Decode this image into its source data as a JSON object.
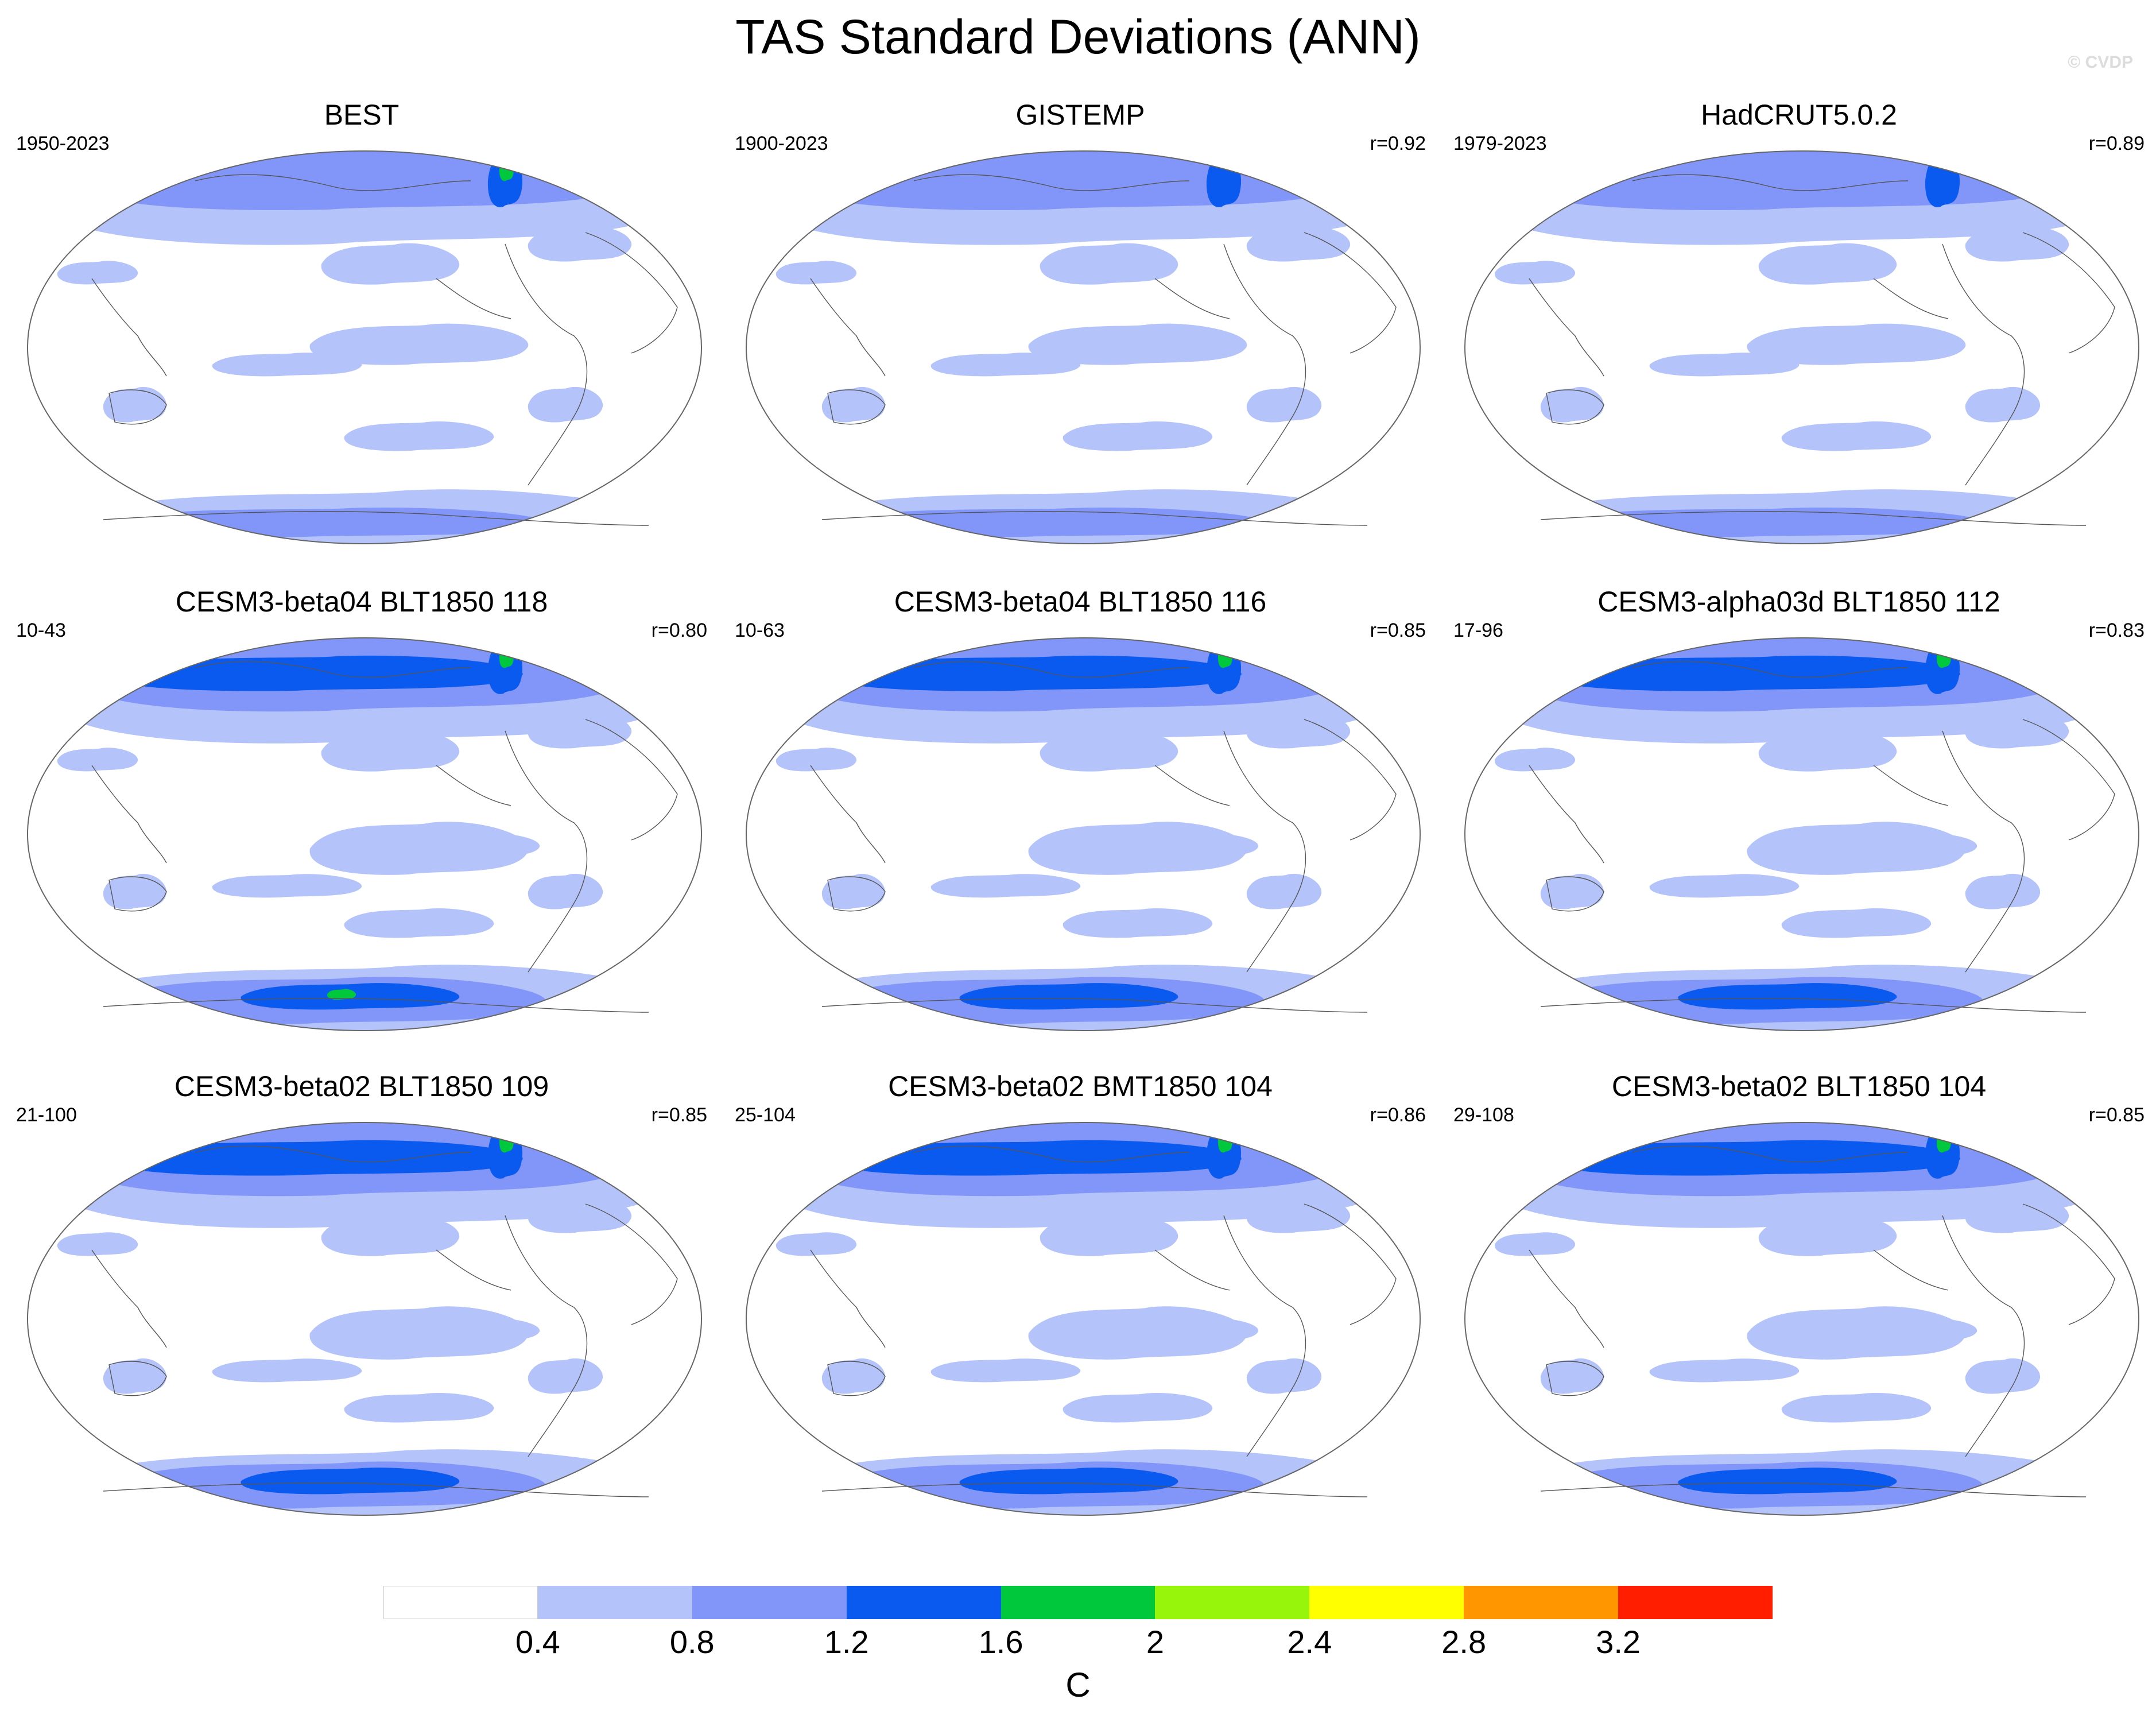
{
  "title": "TAS Standard Deviations (ANN)",
  "watermark": "© CVDP",
  "panels": [
    {
      "title": "BEST",
      "period": "1950-2023",
      "r": ""
    },
    {
      "title": "GISTEMP",
      "period": "1900-2023",
      "r": "r=0.92"
    },
    {
      "title": "HadCRUT5.0.2",
      "period": "1979-2023",
      "r": "r=0.89"
    },
    {
      "title": "CESM3-beta04 BLT1850 118",
      "period": "10-43",
      "r": "r=0.80"
    },
    {
      "title": "CESM3-beta04 BLT1850 116",
      "period": "10-63",
      "r": "r=0.85"
    },
    {
      "title": "CESM3-alpha03d BLT1850 112",
      "period": "17-96",
      "r": "r=0.83"
    },
    {
      "title": "CESM3-beta02 BLT1850 109",
      "period": "21-100",
      "r": "r=0.85"
    },
    {
      "title": "CESM3-beta02 BMT1850 104",
      "period": "25-104",
      "r": "r=0.86"
    },
    {
      "title": "CESM3-beta02 BLT1850 104",
      "period": "29-108",
      "r": "r=0.85"
    }
  ],
  "colorbar": {
    "colors": [
      "#ffffff",
      "#b4c3fa",
      "#8296fa",
      "#0a5af0",
      "#00c83c",
      "#96f50a",
      "#ffff00",
      "#ff9600",
      "#ff1e00"
    ],
    "labels": [
      "0.4",
      "0.8",
      "1.2",
      "1.6",
      "2",
      "2.4",
      "2.8",
      "3.2"
    ],
    "unit": "C"
  }
}
